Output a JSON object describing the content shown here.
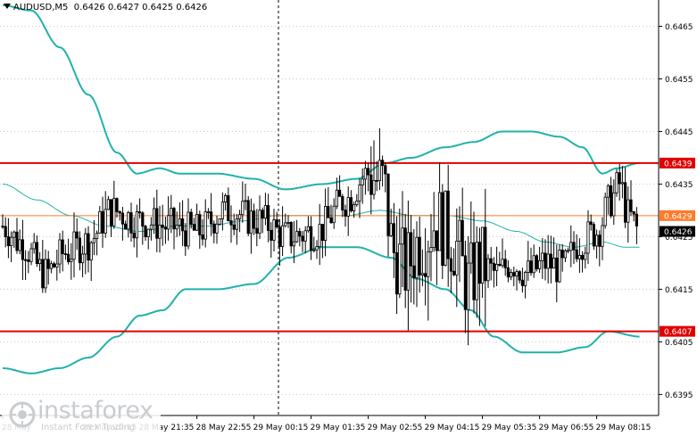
{
  "window": {
    "symbol": "AUDUSD,M5",
    "ohlc": "0.6426 0.6427 0.6425 0.6426"
  },
  "watermark": {
    "name": "instaforex",
    "tagline": "Instant Forex Trading"
  },
  "colors": {
    "background": "#ffffff",
    "candle": "#000000",
    "bollinger_bands": "#20b2aa",
    "moving_average": "#20b2aa",
    "support_resistance": "#e00000",
    "orange_level": "#ff7a2a",
    "current_price_label_bg": "#000000",
    "grid": "#c8c8c8"
  },
  "chart_data": {
    "type": "candlestick",
    "title": "AUDUSD,M5",
    "y_axis": {
      "min": 0.6391,
      "max": 0.647,
      "ticks": [
        "0.6465",
        "0.6455",
        "0.6445",
        "0.6435",
        "0.6425",
        "0.6415",
        "0.6405",
        "0.6395"
      ],
      "tick_values": [
        0.6465,
        0.6455,
        0.6445,
        0.6435,
        0.6425,
        0.6415,
        0.6405,
        0.6395
      ]
    },
    "x_axis": {
      "ticks": [
        "28 May",
        "28 May 20:15",
        "28 May 21:35",
        "28 May 22:55",
        "29 May 00:15",
        "29 May 01:35",
        "29 May 02:55",
        "29 May 04:15",
        "29 May 05:35",
        "29 May 06:55",
        "29 May 08:15"
      ],
      "tick_bar_index": [
        0,
        28,
        48,
        68,
        88,
        108,
        128,
        148,
        168,
        188,
        208
      ]
    },
    "levels": [
      {
        "label": "0.6439",
        "value": 0.6439,
        "color": "#e00000",
        "kind": "line"
      },
      {
        "label": "0.6429",
        "value": 0.6429,
        "color": "#ff7a2a",
        "kind": "line"
      },
      {
        "label": "0.6426",
        "value": 0.6426,
        "color": "#000000",
        "kind": "current-price"
      },
      {
        "label": "0.6407",
        "value": 0.6407,
        "color": "#e00000",
        "kind": "line"
      }
    ],
    "bar_count": 223,
    "anchors": [
      [
        0,
        0.6427
      ],
      [
        6,
        0.6424
      ],
      [
        15,
        0.6418
      ],
      [
        22,
        0.6422
      ],
      [
        30,
        0.6424
      ],
      [
        38,
        0.643
      ],
      [
        48,
        0.6428
      ],
      [
        58,
        0.6427
      ],
      [
        68,
        0.6426
      ],
      [
        78,
        0.643
      ],
      [
        90,
        0.6428
      ],
      [
        100,
        0.6425
      ],
      [
        110,
        0.6426
      ],
      [
        120,
        0.6432
      ],
      [
        128,
        0.6437
      ],
      [
        133,
        0.6435
      ],
      [
        137,
        0.6422
      ],
      [
        141,
        0.6419
      ],
      [
        146,
        0.6424
      ],
      [
        152,
        0.6428
      ],
      [
        158,
        0.6424
      ],
      [
        163,
        0.6416
      ],
      [
        167,
        0.642
      ],
      [
        173,
        0.6418
      ],
      [
        178,
        0.642
      ],
      [
        184,
        0.6418
      ],
      [
        190,
        0.642
      ],
      [
        196,
        0.6419
      ],
      [
        202,
        0.6424
      ],
      [
        208,
        0.6426
      ],
      [
        213,
        0.6432
      ],
      [
        216,
        0.6435
      ],
      [
        219,
        0.6429
      ],
      [
        223,
        0.6426
      ]
    ],
    "bollinger_upper": [
      [
        0,
        0.6469
      ],
      [
        10,
        0.6468
      ],
      [
        20,
        0.6461
      ],
      [
        30,
        0.6452
      ],
      [
        40,
        0.6441
      ],
      [
        47,
        0.6437
      ],
      [
        55,
        0.6438
      ],
      [
        62,
        0.6437
      ],
      [
        75,
        0.6437
      ],
      [
        88,
        0.6436
      ],
      [
        99,
        0.6434
      ],
      [
        112,
        0.6435
      ],
      [
        124,
        0.6436
      ],
      [
        134,
        0.6439
      ],
      [
        143,
        0.644
      ],
      [
        155,
        0.6442
      ],
      [
        165,
        0.6443
      ],
      [
        175,
        0.6445
      ],
      [
        185,
        0.6445
      ],
      [
        195,
        0.6444
      ],
      [
        203,
        0.6442
      ],
      [
        210,
        0.6437
      ],
      [
        215,
        0.6438
      ],
      [
        223,
        0.6439
      ]
    ],
    "bollinger_lower": [
      [
        0,
        0.64
      ],
      [
        10,
        0.6399
      ],
      [
        20,
        0.64
      ],
      [
        30,
        0.6402
      ],
      [
        40,
        0.6406
      ],
      [
        48,
        0.641
      ],
      [
        56,
        0.6411
      ],
      [
        64,
        0.6415
      ],
      [
        75,
        0.6415
      ],
      [
        88,
        0.6416
      ],
      [
        100,
        0.6421
      ],
      [
        112,
        0.6423
      ],
      [
        124,
        0.6423
      ],
      [
        136,
        0.6421
      ],
      [
        145,
        0.6417
      ],
      [
        155,
        0.6415
      ],
      [
        164,
        0.6411
      ],
      [
        172,
        0.6406
      ],
      [
        182,
        0.6403
      ],
      [
        194,
        0.6403
      ],
      [
        204,
        0.6404
      ],
      [
        212,
        0.6407
      ],
      [
        223,
        0.6406
      ]
    ],
    "moving_average": [
      [
        0,
        0.6435
      ],
      [
        12,
        0.6432
      ],
      [
        24,
        0.6429
      ],
      [
        36,
        0.6427
      ],
      [
        48,
        0.6426
      ],
      [
        60,
        0.6427
      ],
      [
        72,
        0.6427
      ],
      [
        84,
        0.6428
      ],
      [
        96,
        0.6429
      ],
      [
        108,
        0.6429
      ],
      [
        120,
        0.6429
      ],
      [
        132,
        0.643
      ],
      [
        144,
        0.6429
      ],
      [
        156,
        0.6429
      ],
      [
        168,
        0.6428
      ],
      [
        180,
        0.6426
      ],
      [
        190,
        0.6424
      ],
      [
        200,
        0.6423
      ],
      [
        210,
        0.6424
      ],
      [
        218,
        0.6423
      ],
      [
        223,
        0.6423
      ]
    ]
  }
}
